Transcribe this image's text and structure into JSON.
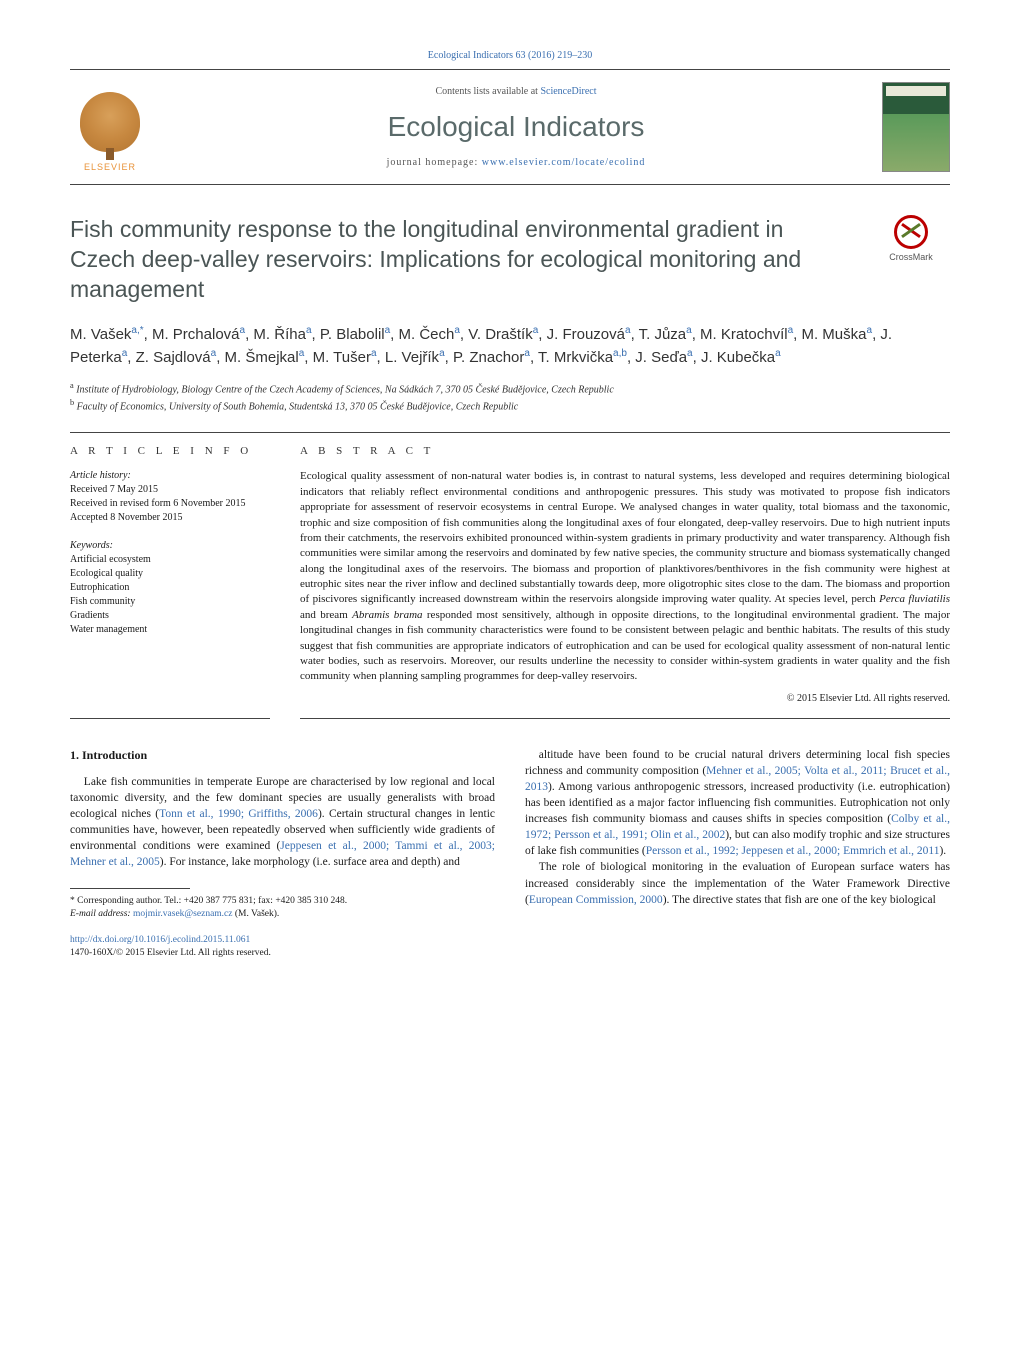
{
  "colors": {
    "link": "#3a6fb0",
    "title": "#4a5555",
    "text": "#1a1a1a",
    "elsevier_orange": "#e8933a"
  },
  "citation_top": "Ecological Indicators 63 (2016) 219–230",
  "masthead": {
    "publisher_name": "ELSEVIER",
    "contents_prefix": "Contents lists available at ",
    "contents_link": "ScienceDirect",
    "journal_name": "Ecological Indicators",
    "homepage_prefix": "journal homepage: ",
    "homepage_url": "www.elsevier.com/locate/ecolind"
  },
  "crossmark_label": "CrossMark",
  "title": "Fish community response to the longitudinal environmental gradient in Czech deep-valley reservoirs: Implications for ecological monitoring and management",
  "authors_html": "M. Vašek<sup>a,*</sup>, M. Prchalová<sup>a</sup>, M. Říha<sup>a</sup>, P. Blabolil<sup>a</sup>, M. Čech<sup>a</sup>, V. Draštík<sup>a</sup>, J. Frouzová<sup>a</sup>, T. Jůza<sup>a</sup>, M. Kratochvíl<sup>a</sup>, M. Muška<sup>a</sup>, J. Peterka<sup>a</sup>, Z. Sajdlová<sup>a</sup>, M. Šmejkal<sup>a</sup>, M. Tušer<sup>a</sup>, L. Vejřík<sup>a</sup>, P. Znachor<sup>a</sup>, T. Mrkvička<sup>a,b</sup>, J. Seďa<sup>a</sup>, J. Kubečka<sup>a</sup>",
  "affiliations": [
    {
      "sup": "a",
      "text": "Institute of Hydrobiology, Biology Centre of the Czech Academy of Sciences, Na Sádkách 7, 370 05 České Budějovice, Czech Republic"
    },
    {
      "sup": "b",
      "text": "Faculty of Economics, University of South Bohemia, Studentská 13, 370 05 České Budějovice, Czech Republic"
    }
  ],
  "info": {
    "heading": "A R T I C L E   I N F O",
    "history_label": "Article history:",
    "history": [
      "Received 7 May 2015",
      "Received in revised form 6 November 2015",
      "Accepted 8 November 2015"
    ],
    "keywords_label": "Keywords:",
    "keywords": [
      "Artificial ecosystem",
      "Ecological quality",
      "Eutrophication",
      "Fish community",
      "Gradients",
      "Water management"
    ]
  },
  "abstract": {
    "heading": "A B S T R A C T",
    "text": "Ecological quality assessment of non-natural water bodies is, in contrast to natural systems, less developed and requires determining biological indicators that reliably reflect environmental conditions and anthropogenic pressures. This study was motivated to propose fish indicators appropriate for assessment of reservoir ecosystems in central Europe. We analysed changes in water quality, total biomass and the taxonomic, trophic and size composition of fish communities along the longitudinal axes of four elongated, deep-valley reservoirs. Due to high nutrient inputs from their catchments, the reservoirs exhibited pronounced within-system gradients in primary productivity and water transparency. Although fish communities were similar among the reservoirs and dominated by few native species, the community structure and biomass systematically changed along the longitudinal axes of the reservoirs. The biomass and proportion of planktivores/benthivores in the fish community were highest at eutrophic sites near the river inflow and declined substantially towards deep, more oligotrophic sites close to the dam. The biomass and proportion of piscivores significantly increased downstream within the reservoirs alongside improving water quality. At species level, perch Perca fluviatilis and bream Abramis brama responded most sensitively, although in opposite directions, to the longitudinal environmental gradient. The major longitudinal changes in fish community characteristics were found to be consistent between pelagic and benthic habitats. The results of this study suggest that fish communities are appropriate indicators of eutrophication and can be used for ecological quality assessment of non-natural lentic water bodies, such as reservoirs. Moreover, our results underline the necessity to consider within-system gradients in water quality and the fish community when planning sampling programmes for deep-valley reservoirs.",
    "copyright": "© 2015 Elsevier Ltd. All rights reserved."
  },
  "body": {
    "section_heading": "1.  Introduction",
    "col1": [
      "Lake fish communities in temperate Europe are characterised by low regional and local taxonomic diversity, and the few dominant species are usually generalists with broad ecological niches (<span class=\"cite\">Tonn et al., 1990; Griffiths, 2006</span>). Certain structural changes in lentic communities have, however, been repeatedly observed when sufficiently wide gradients of environmental conditions were examined (<span class=\"cite\">Jeppesen et al., 2000; Tammi et al., 2003; Mehner et al., 2005</span>). For instance, lake morphology (i.e. surface area and depth) and"
    ],
    "col2": [
      "altitude have been found to be crucial natural drivers determining local fish species richness and community composition (<span class=\"cite\">Mehner et al., 2005; Volta et al., 2011; Brucet et al., 2013</span>). Among various anthropogenic stressors, increased productivity (i.e. eutrophication) has been identified as a major factor influencing fish communities. Eutrophication not only increases fish community biomass and causes shifts in species composition (<span class=\"cite\">Colby et al., 1972; Persson et al., 1991; Olin et al., 2002</span>), but can also modify trophic and size structures of lake fish communities (<span class=\"cite\">Persson et al., 1992; Jeppesen et al., 2000; Emmrich et al., 2011</span>).",
      "The role of biological monitoring in the evaluation of European surface waters has increased considerably since the implementation of the Water Framework Directive (<span class=\"cite\">European Commission, 2000</span>). The directive states that fish are one of the key biological"
    ]
  },
  "footer": {
    "corresponding": "* Corresponding author. Tel.: +420 387 775 831; fax: +420 385 310 248.",
    "email_label": "E-mail address: ",
    "email": "mojmir.vasek@seznam.cz",
    "email_person": " (M. Vašek).",
    "doi": "http://dx.doi.org/10.1016/j.ecolind.2015.11.061",
    "issn_line": "1470-160X/© 2015 Elsevier Ltd. All rights reserved."
  }
}
